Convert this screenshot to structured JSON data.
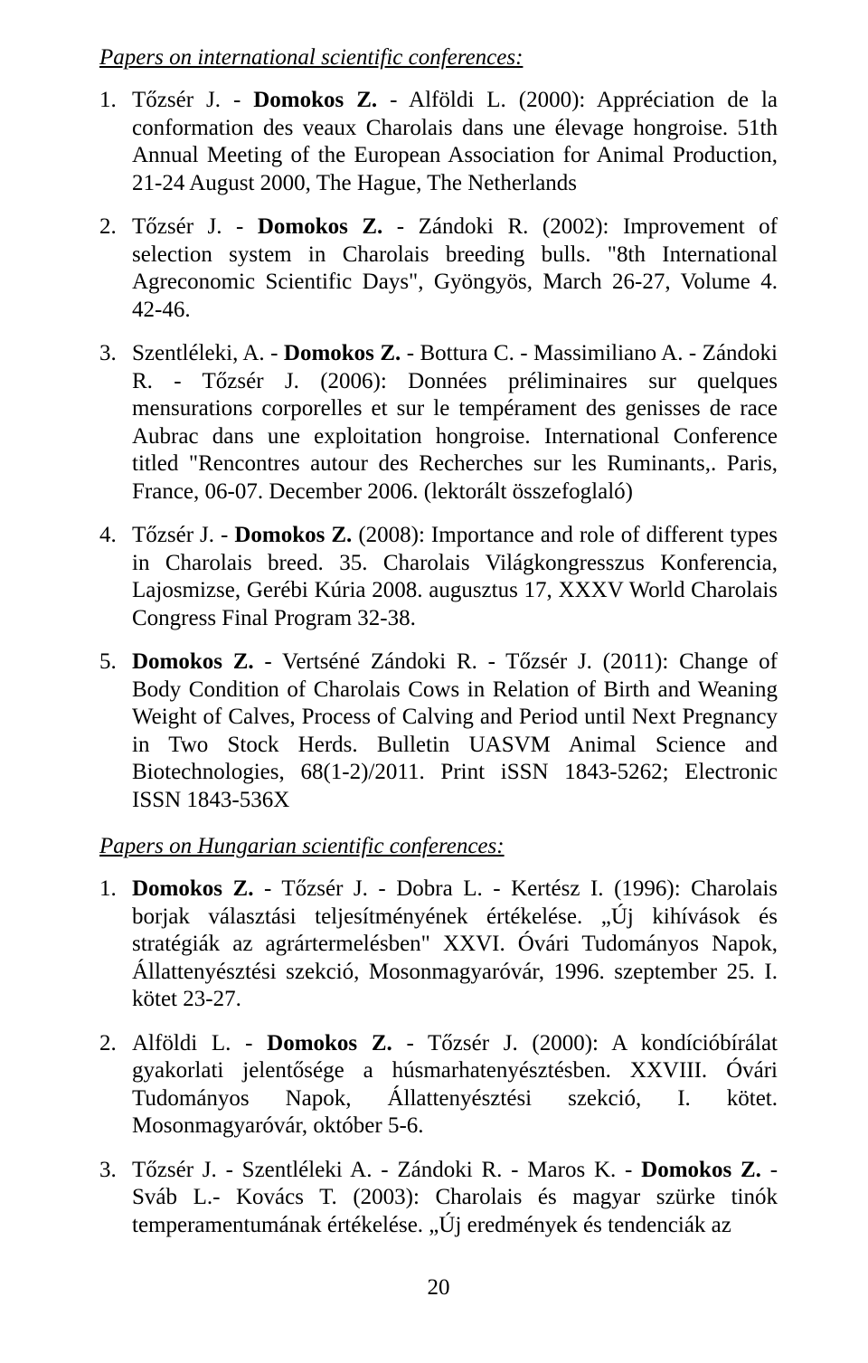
{
  "section1_heading": "Papers on international scientific conferences:",
  "section1": [
    {
      "num": "1.",
      "text": "Tőzsér J. - <b>Domokos Z.</b> - Alföldi L. (2000): Appréciation de la conformation des veaux Charolais dans une élevage hongroise. 51th Annual Meeting of the European Association for Animal Production, 21-24 August 2000, The Hague, The Netherlands"
    },
    {
      "num": "2.",
      "text": "Tőzsér J. - <b>Domokos Z.</b> - Zándoki R. (2002): Improvement of selection system in Charolais breeding bulls. \"8th International Agreconomic Scientific Days\", Gyöngyös, March 26-27, Volume 4. 42-46."
    },
    {
      "num": "3.",
      "text": "Szentléleki, A. - <b>Domokos Z.</b> - Bottura C. - Massimiliano A. - Zándoki R. - Tőzsér J. (2006): Données préliminaires sur quelques mensurations corporelles et sur le tempérament des genisses de race Aubrac dans une exploitation hongroise. International Conference titled \"Rencontres autour des Recherches sur les Ruminants,. Paris, France, 06-07. December 2006. (lektorált összefoglaló)"
    },
    {
      "num": "4.",
      "text": "Tőzsér J. - <b>Domokos Z.</b> (2008): Importance and role of different types in Charolais breed. 35. Charolais Világkongresszus Konferencia, Lajosmizse, Gerébi Kúria 2008. augusztus 17, XXXV World Charolais Congress Final Program 32-38."
    },
    {
      "num": "5.",
      "text": "<b>Domokos Z.</b> - Vertséné Zándoki R. - Tőzsér J. (2011): Change of Body Condition of Charolais Cows in Relation of Birth and Weaning Weight of Calves, Process of Calving and Period until Next Pregnancy in Two Stock Herds. Bulletin UASVM Animal Science and Biotechnologies, 68(1-2)/2011. Print iSSN 1843-5262; Electronic ISSN 1843-536X"
    }
  ],
  "section2_heading": "Papers on Hungarian scientific conferences:",
  "section2": [
    {
      "num": "1.",
      "text": "<b>Domokos Z.</b> - Tőzsér J. - Dobra L. - Kertész I. (1996): Charolais borjak választási teljesítményének értékelése. „Új kihívások és stratégiák az agrártermelésben\" XXVI. Óvári Tudományos Napok, Állattenyésztési szekció, Mosonmagyaróvár, 1996. szeptember 25. I. kötet 23-27."
    },
    {
      "num": "2.",
      "text": "Alföldi L. - <b>Domokos Z.</b> - Tőzsér J. (2000): A kondícióbírálat gyakorlati jelentősége a húsmarhatenyésztésben. XXVIII. Óvári Tudományos Napok, Állattenyésztési szekció, I. kötet. Mosonmagyaróvár, október 5-6."
    },
    {
      "num": "3.",
      "text": "Tőzsér J. - Szentléleki A. - Zándoki R. - Maros K. - <b>Domokos Z.</b> - Sváb L.- Kovács T. (2003): Charolais és magyar szürke tinók temperamentumának értékelése. „Új eredmények és tendenciák az"
    }
  ],
  "page_number": "20"
}
